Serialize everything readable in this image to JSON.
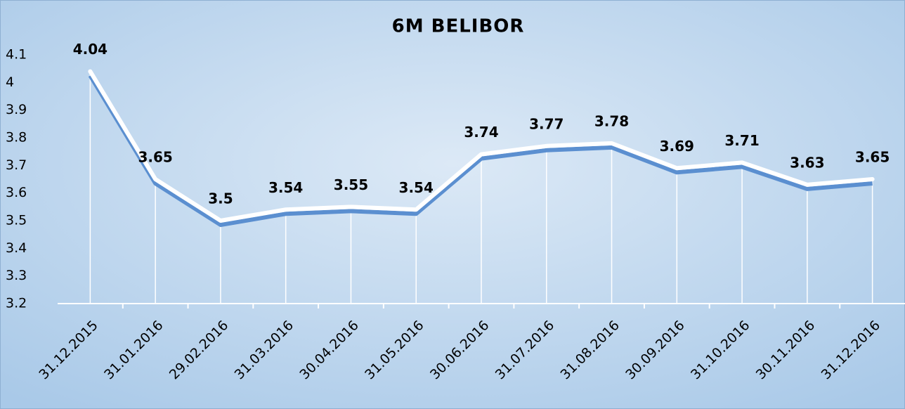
{
  "chart_data": {
    "type": "line",
    "title": "6M BELIBOR",
    "categories": [
      "31.12.2015",
      "31.01.2016",
      "29.02.2016",
      "31.03.2016",
      "30.04.2016",
      "31.05.2016",
      "30.06.2016",
      "31.07.2016",
      "31.08.2016",
      "30.09.2016",
      "31.10.2016",
      "30.11.2016",
      "31.12.2016"
    ],
    "values": [
      4.04,
      3.65,
      3.5,
      3.54,
      3.55,
      3.54,
      3.74,
      3.77,
      3.78,
      3.69,
      3.71,
      3.63,
      3.65
    ],
    "color": "#ffffff",
    "ylim": [
      3.2,
      4.1
    ],
    "yticks": [
      3.2,
      3.3,
      3.4,
      3.5,
      3.6,
      3.7,
      3.8,
      3.9,
      4,
      4.1
    ]
  }
}
